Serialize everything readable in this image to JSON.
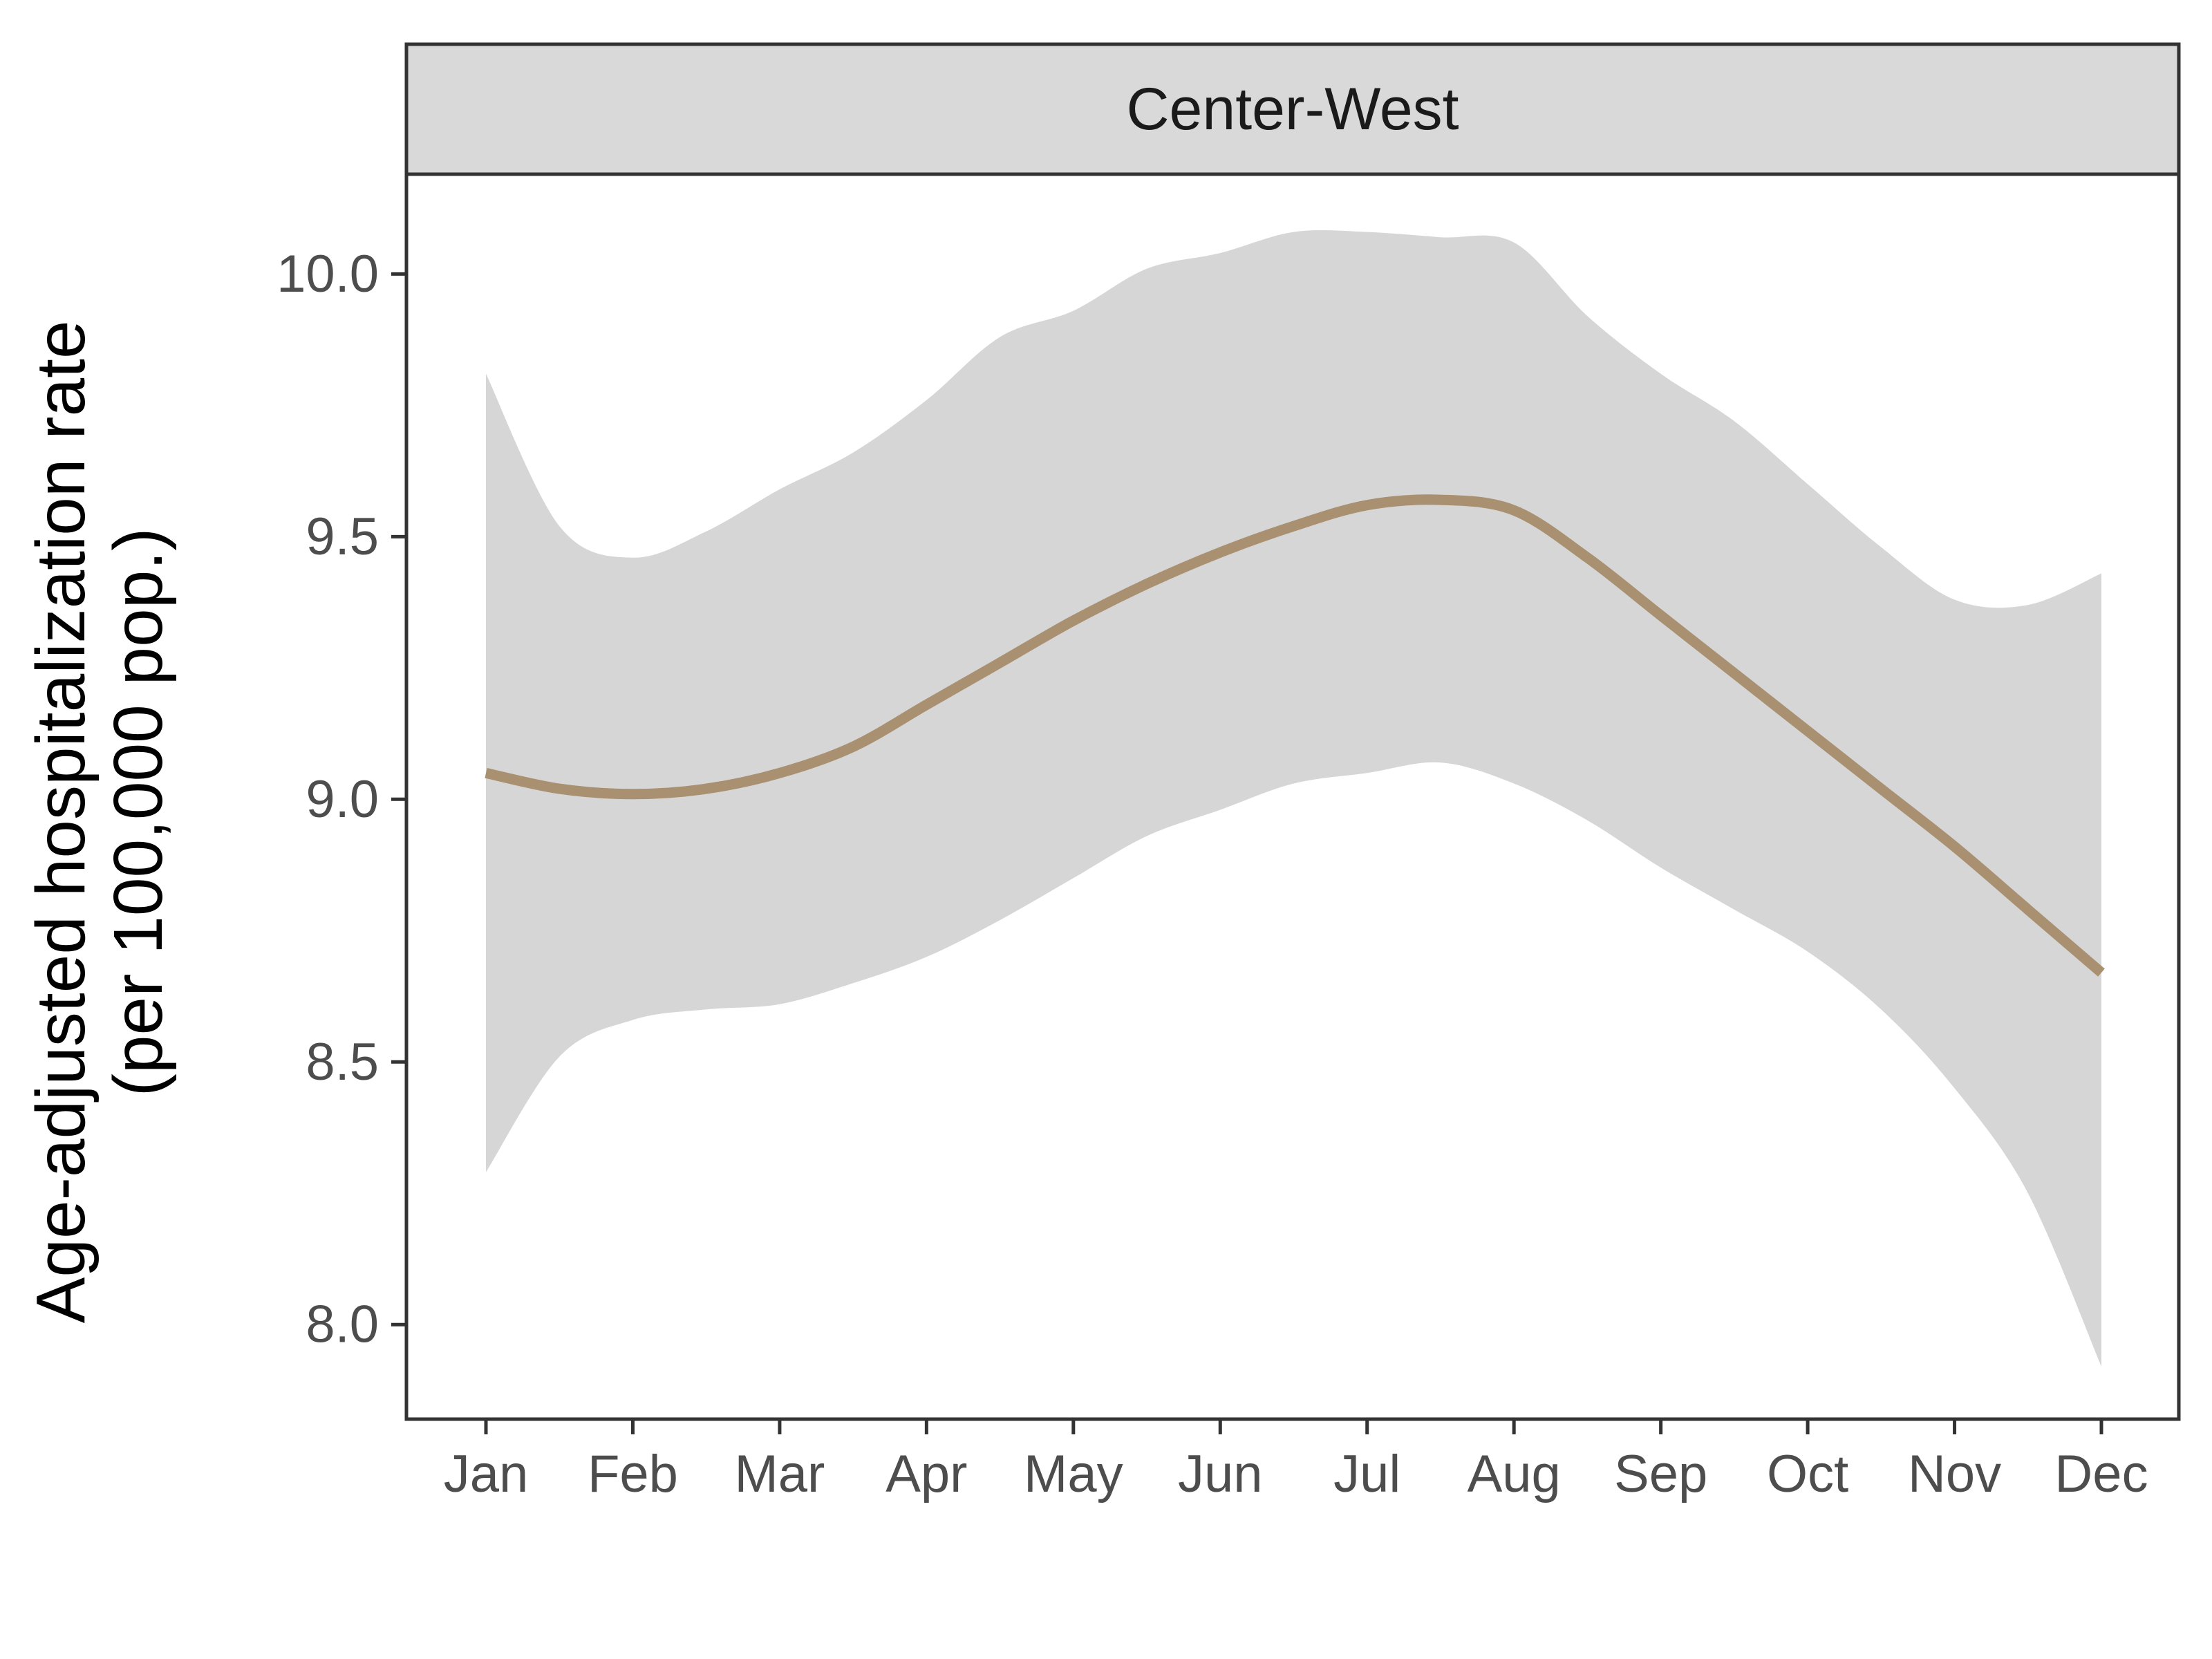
{
  "chart_data": {
    "type": "line",
    "panel": "Center-West",
    "ylabel_lines": [
      "Age-adjusted hospitalization rate",
      "(per 100,000 pop.)"
    ],
    "xlabel": "",
    "categories": [
      "Jan",
      "Feb",
      "Mar",
      "Apr",
      "May",
      "Jun",
      "Jul",
      "Aug",
      "Sep",
      "Oct",
      "Nov",
      "Dec"
    ],
    "ylim": [
      7.82,
      10.19
    ],
    "yticks": [
      8.0,
      8.5,
      9.0,
      9.5,
      10.0
    ],
    "ytick_labels": [
      "8.0",
      "8.5",
      "9.0",
      "9.5",
      "10.0"
    ],
    "grid": false,
    "legend": "none",
    "series": [
      {
        "x": [
          1,
          1.5,
          2,
          2.5,
          3,
          3.5,
          4,
          4.5,
          5,
          5.5,
          6,
          6.5,
          7,
          7.5,
          8,
          8.5,
          9,
          9.5,
          10,
          10.5,
          11,
          11.5,
          12
        ],
        "values": [
          9.05,
          9.02,
          9.01,
          9.02,
          9.05,
          9.1,
          9.18,
          9.26,
          9.34,
          9.41,
          9.47,
          9.52,
          9.56,
          9.57,
          9.55,
          9.46,
          9.35,
          9.24,
          9.13,
          9.02,
          8.91,
          8.79,
          8.67
        ],
        "ci_lower": [
          8.29,
          8.51,
          8.58,
          8.6,
          8.61,
          8.65,
          8.7,
          8.77,
          8.85,
          8.93,
          8.98,
          9.03,
          9.05,
          9.07,
          9.03,
          8.96,
          8.87,
          8.79,
          8.71,
          8.6,
          8.45,
          8.25,
          7.92
        ],
        "ci_upper": [
          9.81,
          9.52,
          9.46,
          9.51,
          9.59,
          9.66,
          9.76,
          9.88,
          9.93,
          10.01,
          10.04,
          10.08,
          10.08,
          10.07,
          10.06,
          9.92,
          9.81,
          9.72,
          9.6,
          9.48,
          9.38,
          9.37,
          9.43
        ]
      }
    ],
    "colors": {
      "line": "#a89070",
      "ribbon": "#d6d6d6",
      "strip_bg": "#d9d9d9",
      "frame": "#333333"
    }
  }
}
